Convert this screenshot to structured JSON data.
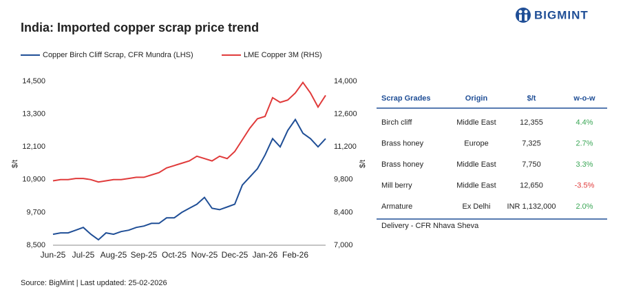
{
  "chart_data": {
    "type": "line",
    "title": "India: Imported copper scrap price trend",
    "brand": "BIGMINT",
    "source": "Source: BigMint | Last updated: 25-02-2026",
    "ylabel": "$/t",
    "y2label": "$/t",
    "categories": [
      "Jun-25",
      null,
      null,
      null,
      "Jul-25",
      null,
      null,
      null,
      "Aug-25",
      null,
      null,
      null,
      "Sep-25",
      null,
      null,
      null,
      "Oct-25",
      null,
      null,
      null,
      "Nov-25",
      null,
      null,
      null,
      "Dec-25",
      null,
      null,
      null,
      "Jan-26",
      null,
      null,
      null,
      "Feb-26",
      null,
      null,
      null,
      null
    ],
    "series": [
      {
        "name": "Copper Birch Cliff Scrap, CFR Mundra (LHS)",
        "color": "#1f4e96",
        "axis": "y",
        "values": [
          8900,
          8950,
          8950,
          9050,
          9150,
          8900,
          8700,
          8950,
          8900,
          9000,
          9050,
          9150,
          9200,
          9300,
          9300,
          9500,
          9500,
          9700,
          9850,
          10000,
          10250,
          9850,
          9800,
          9900,
          10000,
          10700,
          11000,
          11300,
          11800,
          12400,
          12100,
          12700,
          13100,
          12600,
          12400,
          12100,
          12400
        ]
      },
      {
        "name": "LME Copper 3M (RHS)",
        "color": "#e03a3a",
        "axis": "y2",
        "values": [
          9750,
          9800,
          9800,
          9850,
          9850,
          9800,
          9700,
          9750,
          9800,
          9800,
          9850,
          9900,
          9900,
          10000,
          10100,
          10300,
          10400,
          10500,
          10600,
          10800,
          10700,
          10600,
          10800,
          10700,
          11000,
          11500,
          12000,
          12400,
          12500,
          13300,
          13100,
          13200,
          13500,
          13950,
          13500,
          12900,
          13400
        ]
      }
    ],
    "ylim": [
      8500,
      14500
    ],
    "yticks": [
      {
        "value": 8500,
        "label": "8,500"
      },
      {
        "value": 9700,
        "label": "9,700"
      },
      {
        "value": 10900,
        "label": "10,900"
      },
      {
        "value": 12100,
        "label": "12,100"
      },
      {
        "value": 13300,
        "label": "13,300"
      },
      {
        "value": 14500,
        "label": "14,500"
      }
    ],
    "y2lim": [
      7000,
      14000
    ],
    "y2ticks": [
      {
        "value": 7000,
        "label": "7,000"
      },
      {
        "value": 8400,
        "label": "8,400"
      },
      {
        "value": 9800,
        "label": "9,800"
      },
      {
        "value": 11200,
        "label": "11,200"
      },
      {
        "value": 12600,
        "label": "12,600"
      },
      {
        "value": 14000,
        "label": "14,000"
      }
    ],
    "grid": false
  },
  "table": {
    "header": [
      "Scrap Grades",
      "Origin",
      "$/t",
      "w-o-w"
    ],
    "rows": [
      [
        "Birch cliff",
        "Middle East",
        "12,355",
        "4.4%"
      ],
      [
        "Brass honey",
        "Europe",
        "7,325",
        "2.7%"
      ],
      [
        "Brass honey",
        "Middle East",
        "7,750",
        "3.3%"
      ],
      [
        "Mill berry",
        "Middle East",
        "12,650",
        "-3.5%"
      ],
      [
        "Armature",
        "Ex Delhi",
        "INR 1,132,000",
        "2.0%"
      ]
    ],
    "wow_colors": [
      "#3aa655",
      "#3aa655",
      "#3aa655",
      "#e03a3a",
      "#3aa655"
    ],
    "note": "Delivery - CFR Nhava Sheva"
  }
}
